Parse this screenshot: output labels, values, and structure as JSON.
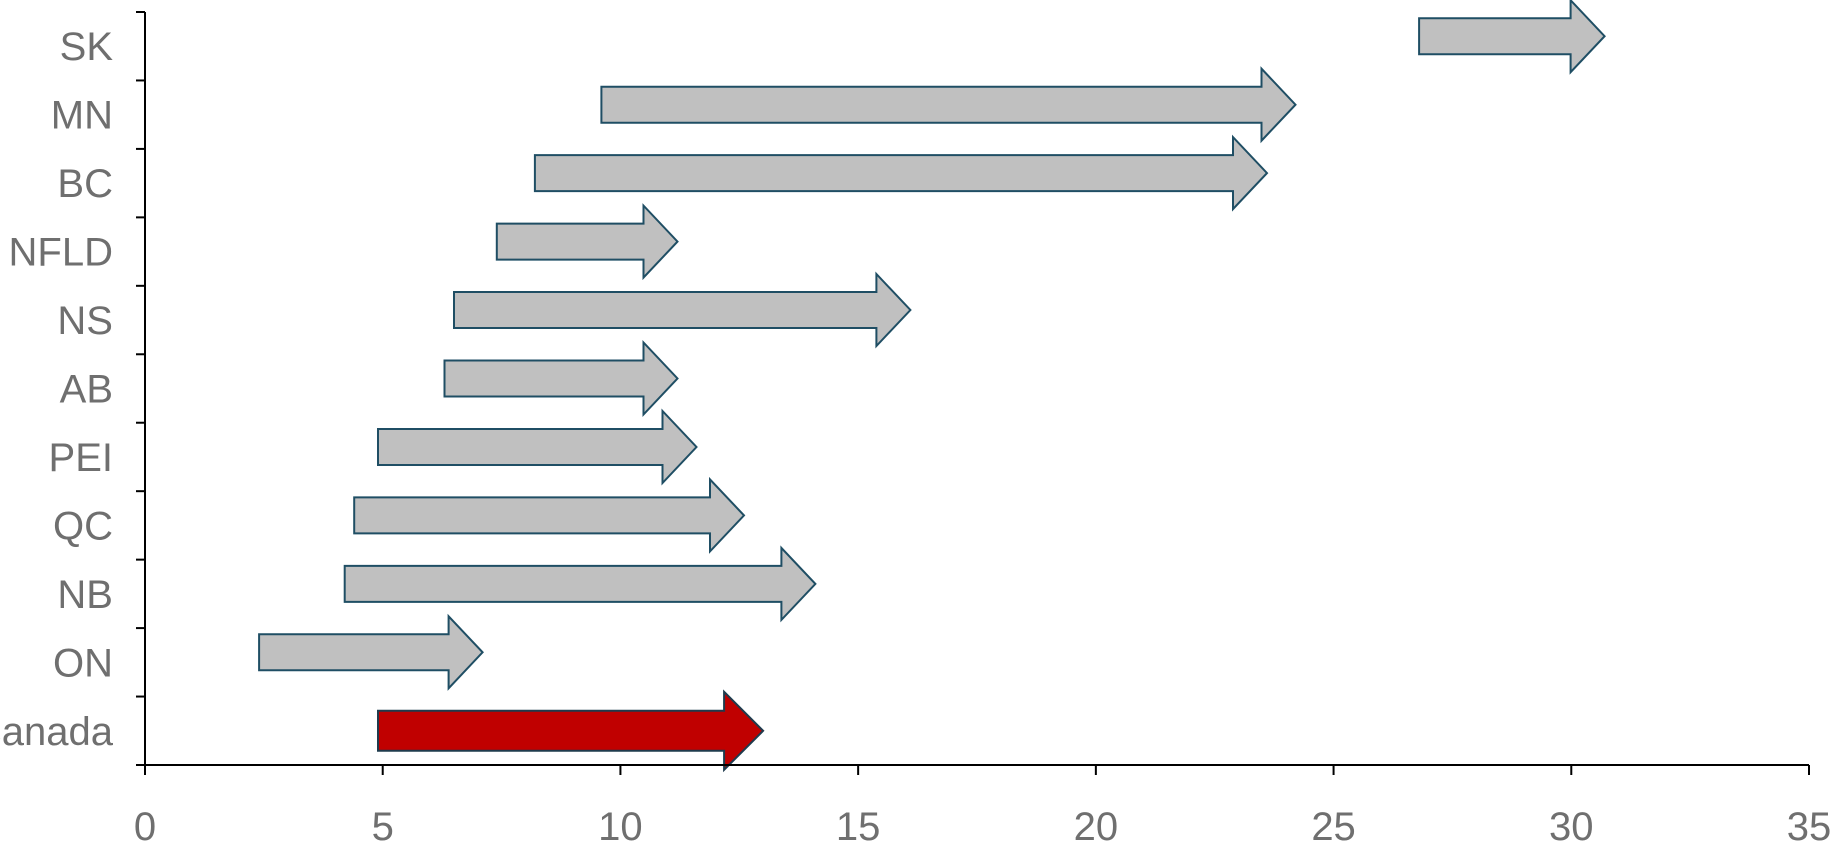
{
  "chart_data": {
    "type": "arrow-range",
    "title": "",
    "xlabel": "",
    "ylabel": "",
    "xlim": [
      0,
      35
    ],
    "xticks": [
      0,
      5,
      10,
      15,
      20,
      25,
      30,
      35
    ],
    "grid": false,
    "categories": [
      "SK",
      "MN",
      "BC",
      "NFLD",
      "NS",
      "AB",
      "PEI",
      "QC",
      "NB",
      "ON",
      "Canada"
    ],
    "series": [
      {
        "points": [
          {
            "label": "SK",
            "start": 26.8,
            "end": 30.7
          },
          {
            "label": "MN",
            "start": 9.6,
            "end": 24.2
          },
          {
            "label": "BC",
            "start": 8.2,
            "end": 23.6
          },
          {
            "label": "NFLD",
            "start": 7.4,
            "end": 11.2
          },
          {
            "label": "NS",
            "start": 6.5,
            "end": 16.1
          },
          {
            "label": "AB",
            "start": 6.3,
            "end": 11.2
          },
          {
            "label": "PEI",
            "start": 4.9,
            "end": 11.6
          },
          {
            "label": "QC",
            "start": 4.4,
            "end": 12.6
          },
          {
            "label": "NB",
            "start": 4.2,
            "end": 14.1
          },
          {
            "label": "ON",
            "start": 2.4,
            "end": 7.1
          },
          {
            "label": "Canada",
            "start": 4.9,
            "end": 13.0
          }
        ]
      }
    ],
    "colors": {
      "arrow_fill": "#c0c0c0",
      "arrow_stroke": "#1f4e64",
      "highlight_fill": "#c00000",
      "highlight_stroke": "#1f3b4d",
      "label": "#6f6f6f",
      "axis": "#000000"
    },
    "highlight": "Canada"
  }
}
